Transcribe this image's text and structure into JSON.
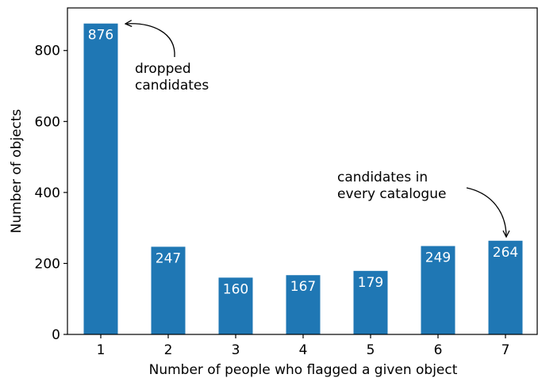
{
  "chart_data": {
    "type": "bar",
    "categories": [
      "1",
      "2",
      "3",
      "4",
      "5",
      "6",
      "7"
    ],
    "values": [
      876,
      247,
      160,
      167,
      179,
      249,
      264
    ],
    "data_labels": [
      "876",
      "247",
      "160",
      "167",
      "179",
      "249",
      "264"
    ],
    "title": "",
    "xlabel": "Number of people who flagged a given object",
    "ylabel": "Number of objects",
    "ylim": [
      0,
      920
    ],
    "yticks": [
      0,
      200,
      400,
      600,
      800
    ],
    "ytick_labels": [
      "0",
      "200",
      "400",
      "600",
      "800"
    ],
    "bar_color": "#1f77b4",
    "grid": false,
    "annotations": [
      {
        "lines": [
          "dropped",
          "candidates"
        ],
        "points_to_category": "1"
      },
      {
        "lines": [
          "candidates in",
          "every catalogue"
        ],
        "points_to_category": "7"
      }
    ]
  }
}
